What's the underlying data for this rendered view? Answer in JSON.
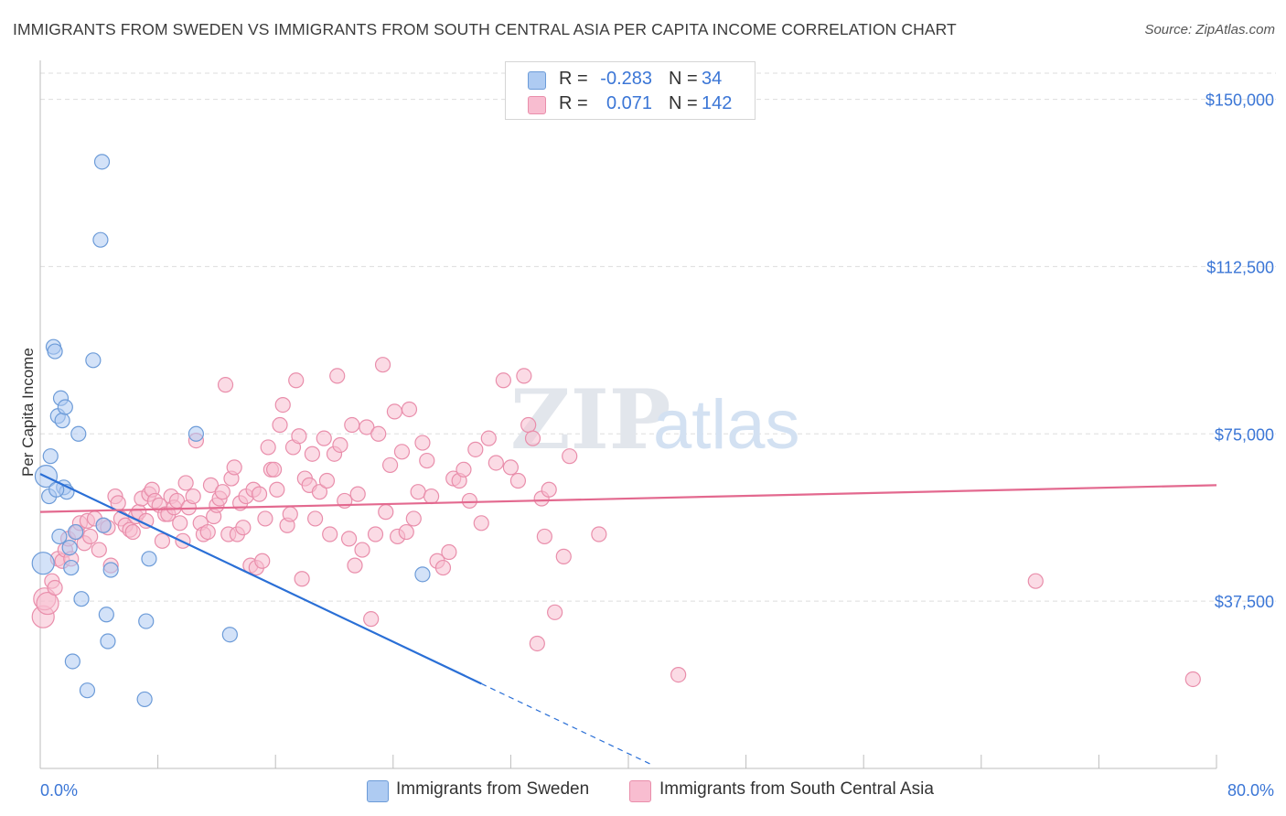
{
  "header": {
    "title": "IMMIGRANTS FROM SWEDEN VS IMMIGRANTS FROM SOUTH CENTRAL ASIA PER CAPITA INCOME CORRELATION CHART",
    "source": "Source: ZipAtlas.com"
  },
  "watermark": {
    "zip": "ZIP",
    "atlas": "atlas"
  },
  "legend": {
    "r_label": "R =",
    "n_label": "N =",
    "rows": [
      {
        "r": "-0.283",
        "n": "34",
        "fill": "#aecbf2",
        "stroke": "#6c9bd8"
      },
      {
        "r": "0.071",
        "n": "142",
        "fill": "#f8bdd0",
        "stroke": "#e98eab"
      }
    ]
  },
  "colors": {
    "value_text": "#3b76d6",
    "blue_line": "#2a6fd6",
    "pink_line": "#e3698f",
    "grid": "#dddddd"
  },
  "chart_data": {
    "type": "scatter",
    "title": "IMMIGRANTS FROM SWEDEN VS IMMIGRANTS FROM SOUTH CENTRAL ASIA PER CAPITA INCOME CORRELATION CHART",
    "xlabel": "",
    "ylabel": "Per Capita Income",
    "xlim": [
      0,
      80
    ],
    "ylim": [
      0,
      157500
    ],
    "x_tick_labels": [
      "0.0%",
      "80.0%"
    ],
    "y_ticks": [
      37500,
      75000,
      112500,
      150000
    ],
    "y_tick_labels": [
      "$37,500",
      "$75,000",
      "$112,500",
      "$150,000"
    ],
    "grid": true,
    "legend_position": "top-center",
    "series": [
      {
        "name": "Immigrants from Sweden",
        "r": -0.283,
        "n": 34,
        "trend": {
          "x0": 0,
          "y0": 66000,
          "x1": 30,
          "y1": 19000,
          "dash_to_x": 41.5
        },
        "points": [
          [
            0.2,
            46000
          ],
          [
            0.4,
            65500
          ],
          [
            0.6,
            61000
          ],
          [
            0.7,
            70000
          ],
          [
            0.9,
            94500
          ],
          [
            1.0,
            93500
          ],
          [
            1.2,
            79000
          ],
          [
            1.3,
            52000
          ],
          [
            1.4,
            83000
          ],
          [
            1.5,
            78000
          ],
          [
            1.6,
            63000
          ],
          [
            1.7,
            81000
          ],
          [
            1.8,
            62000
          ],
          [
            2.0,
            49500
          ],
          [
            2.1,
            45000
          ],
          [
            2.2,
            24000
          ],
          [
            2.4,
            53000
          ],
          [
            2.6,
            75000
          ],
          [
            2.8,
            38000
          ],
          [
            3.2,
            17500
          ],
          [
            3.6,
            91500
          ],
          [
            4.1,
            118500
          ],
          [
            4.3,
            54500
          ],
          [
            4.5,
            34500
          ],
          [
            4.6,
            28500
          ],
          [
            4.8,
            44500
          ],
          [
            4.2,
            136000
          ],
          [
            7.1,
            15500
          ],
          [
            7.2,
            33000
          ],
          [
            7.4,
            47000
          ],
          [
            10.6,
            75000
          ],
          [
            12.9,
            30000
          ],
          [
            26.0,
            43500
          ],
          [
            1.1,
            62500
          ]
        ]
      },
      {
        "name": "Immigrants from South Central Asia",
        "r": 0.071,
        "n": 142,
        "trend": {
          "x0": 0,
          "y0": 57500,
          "x1": 80,
          "y1": 63500
        },
        "points": [
          [
            0.2,
            34000
          ],
          [
            0.3,
            38000
          ],
          [
            0.5,
            37000
          ],
          [
            0.8,
            42000
          ],
          [
            1.0,
            40500
          ],
          [
            1.2,
            47000
          ],
          [
            1.5,
            46500
          ],
          [
            1.7,
            49000
          ],
          [
            1.9,
            51500
          ],
          [
            2.1,
            47000
          ],
          [
            2.5,
            53000
          ],
          [
            2.7,
            55000
          ],
          [
            3.0,
            50500
          ],
          [
            3.2,
            55500
          ],
          [
            3.4,
            52000
          ],
          [
            3.7,
            56000
          ],
          [
            4.0,
            49000
          ],
          [
            4.3,
            54500
          ],
          [
            4.6,
            54000
          ],
          [
            4.8,
            45500
          ],
          [
            5.1,
            61000
          ],
          [
            5.3,
            59500
          ],
          [
            5.5,
            56000
          ],
          [
            5.8,
            54500
          ],
          [
            6.1,
            53500
          ],
          [
            6.3,
            53000
          ],
          [
            6.5,
            56500
          ],
          [
            6.7,
            57500
          ],
          [
            6.9,
            60500
          ],
          [
            7.2,
            55500
          ],
          [
            7.4,
            61500
          ],
          [
            7.6,
            62500
          ],
          [
            7.8,
            60000
          ],
          [
            8.1,
            59000
          ],
          [
            8.3,
            51000
          ],
          [
            8.5,
            57000
          ],
          [
            8.7,
            57000
          ],
          [
            8.9,
            61000
          ],
          [
            9.1,
            58500
          ],
          [
            9.3,
            60000
          ],
          [
            9.5,
            55000
          ],
          [
            9.7,
            51000
          ],
          [
            9.9,
            64000
          ],
          [
            10.1,
            58500
          ],
          [
            10.4,
            61000
          ],
          [
            10.6,
            73500
          ],
          [
            10.9,
            55000
          ],
          [
            11.1,
            52500
          ],
          [
            11.4,
            53000
          ],
          [
            11.6,
            63500
          ],
          [
            11.8,
            56500
          ],
          [
            12.0,
            59000
          ],
          [
            12.2,
            60500
          ],
          [
            12.4,
            62000
          ],
          [
            12.6,
            86000
          ],
          [
            12.8,
            52500
          ],
          [
            13.0,
            65000
          ],
          [
            13.2,
            67500
          ],
          [
            13.4,
            52500
          ],
          [
            13.6,
            59500
          ],
          [
            13.8,
            54000
          ],
          [
            14.0,
            61000
          ],
          [
            14.3,
            45500
          ],
          [
            14.5,
            62500
          ],
          [
            14.7,
            45000
          ],
          [
            14.9,
            61500
          ],
          [
            15.1,
            46500
          ],
          [
            15.3,
            56000
          ],
          [
            15.5,
            72000
          ],
          [
            15.7,
            67000
          ],
          [
            15.9,
            67000
          ],
          [
            16.1,
            62500
          ],
          [
            16.3,
            77000
          ],
          [
            16.5,
            81500
          ],
          [
            16.8,
            54500
          ],
          [
            17.0,
            57000
          ],
          [
            17.2,
            72000
          ],
          [
            17.4,
            87000
          ],
          [
            17.6,
            74500
          ],
          [
            17.8,
            42500
          ],
          [
            18.0,
            65000
          ],
          [
            18.3,
            63500
          ],
          [
            18.5,
            70500
          ],
          [
            18.7,
            56000
          ],
          [
            19.0,
            62000
          ],
          [
            19.3,
            74000
          ],
          [
            19.5,
            64500
          ],
          [
            19.7,
            52500
          ],
          [
            20.0,
            70500
          ],
          [
            20.2,
            88000
          ],
          [
            20.4,
            72500
          ],
          [
            20.7,
            60000
          ],
          [
            21.0,
            51500
          ],
          [
            21.2,
            77000
          ],
          [
            21.4,
            45500
          ],
          [
            21.6,
            61500
          ],
          [
            21.9,
            49000
          ],
          [
            22.2,
            76500
          ],
          [
            22.5,
            33500
          ],
          [
            22.8,
            52500
          ],
          [
            23.0,
            75000
          ],
          [
            23.3,
            90500
          ],
          [
            23.5,
            57500
          ],
          [
            23.8,
            68000
          ],
          [
            24.1,
            80000
          ],
          [
            24.3,
            52000
          ],
          [
            24.6,
            71000
          ],
          [
            24.9,
            53000
          ],
          [
            25.1,
            80500
          ],
          [
            25.4,
            56000
          ],
          [
            25.7,
            62000
          ],
          [
            26.0,
            73000
          ],
          [
            26.3,
            69000
          ],
          [
            26.6,
            61000
          ],
          [
            27.0,
            46500
          ],
          [
            27.4,
            45000
          ],
          [
            27.8,
            48500
          ],
          [
            28.1,
            65000
          ],
          [
            28.5,
            64500
          ],
          [
            28.8,
            67000
          ],
          [
            29.2,
            60000
          ],
          [
            29.6,
            71500
          ],
          [
            30.0,
            55000
          ],
          [
            30.5,
            74000
          ],
          [
            31.0,
            68500
          ],
          [
            31.5,
            87000
          ],
          [
            32.0,
            67500
          ],
          [
            32.5,
            64500
          ],
          [
            32.9,
            88000
          ],
          [
            33.2,
            77000
          ],
          [
            33.5,
            74000
          ],
          [
            33.8,
            28000
          ],
          [
            34.1,
            60500
          ],
          [
            34.3,
            52000
          ],
          [
            34.6,
            62500
          ],
          [
            35.0,
            35000
          ],
          [
            35.6,
            47500
          ],
          [
            36.0,
            70000
          ],
          [
            38.0,
            52500
          ],
          [
            43.4,
            21000
          ],
          [
            67.7,
            42000
          ],
          [
            78.4,
            20000
          ]
        ]
      }
    ]
  }
}
